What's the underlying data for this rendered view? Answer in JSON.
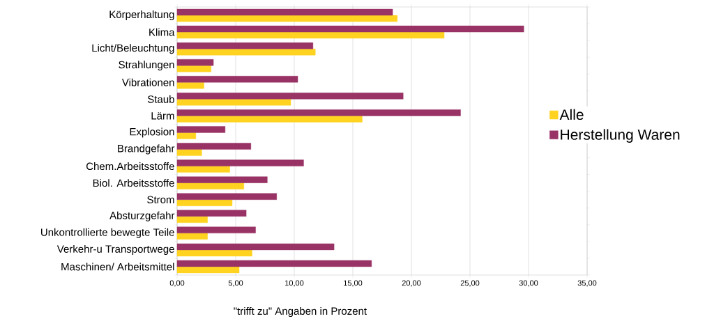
{
  "chart_data": {
    "type": "bar",
    "orientation": "horizontal",
    "xlabel": "\"trifft zu\" Angaben in Prozent",
    "categories": [
      "Körperhaltung",
      "Klima",
      "Licht/Beleuchtung",
      "Strahlungen",
      "Vibrationen",
      "Staub",
      "Lärm",
      "Explosion",
      "Brandgefahr",
      "Chem.Arbeitsstoffe",
      "Biol. Arbeitsstoffe",
      "Strom",
      "Absturzgefahr",
      "Unkontrollierte bewegte Teile",
      "Verkehr-u Transportwege",
      "Maschinen/ Arbeitsmittel"
    ],
    "series": [
      {
        "name": "Alle",
        "color": "#ffd320",
        "values": [
          18.8,
          22.8,
          11.8,
          2.9,
          2.3,
          9.7,
          15.8,
          1.6,
          2.1,
          4.5,
          5.7,
          4.7,
          2.6,
          2.6,
          6.4,
          5.3
        ]
      },
      {
        "name": "Herstellung Waren",
        "color": "#993366",
        "values": [
          18.4,
          29.6,
          11.6,
          3.1,
          10.3,
          19.3,
          24.2,
          4.1,
          6.3,
          10.8,
          7.7,
          8.5,
          5.9,
          6.7,
          13.4,
          16.6
        ]
      }
    ],
    "xlim": [
      0,
      35
    ],
    "xticks": [
      {
        "value": 0,
        "label": "0,00"
      },
      {
        "value": 5,
        "label": "5,00"
      },
      {
        "value": 10,
        "label": "10,00"
      },
      {
        "value": 15,
        "label": "15,00"
      },
      {
        "value": 20,
        "label": "20,00"
      },
      {
        "value": 25,
        "label": "25,00"
      },
      {
        "value": 30,
        "label": "30,00"
      },
      {
        "value": 35,
        "label": "35,00"
      }
    ],
    "grid": "x",
    "legend": "right"
  }
}
